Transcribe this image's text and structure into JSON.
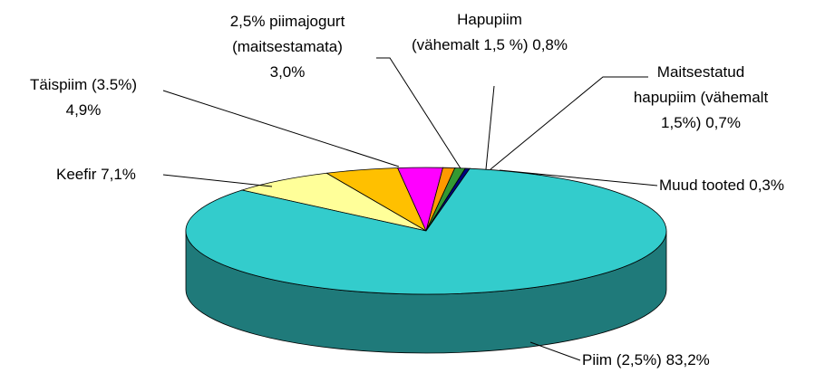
{
  "chart_data": {
    "type": "pie3d",
    "categories": [
      "Keefir",
      "Täispiim (3.5%)",
      "2,5% piimajogurt\n(maitsestamata)",
      "Hapupiim\n(vähemalt 1,5 %)",
      "Maitsestatud\nhapupiim (vähemalt\n1,5%)",
      "Muud tooted",
      "Piim (2,5%)"
    ],
    "values": [
      7.1,
      4.9,
      3.0,
      0.8,
      0.7,
      0.3,
      83.2
    ],
    "value_labels": [
      "7,1%",
      "4,9%",
      "3,0%",
      "0,8%",
      "0,7%",
      "0,3%",
      "83,2%"
    ],
    "colors": [
      "#ffff99",
      "#ffc000",
      "#ff00ff",
      "#ff9900",
      "#339933",
      "#000080",
      "#33cccc"
    ]
  }
}
